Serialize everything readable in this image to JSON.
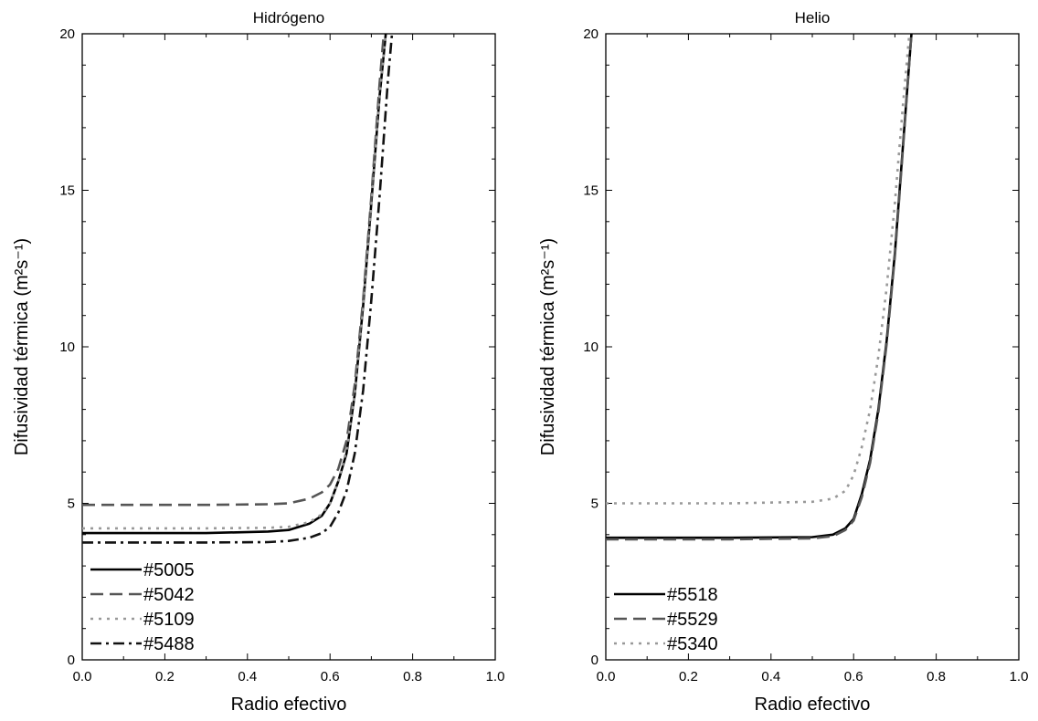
{
  "chart_data": [
    {
      "type": "line",
      "title": "Hidrógeno",
      "xlabel": "Radio efectivo",
      "ylabel": "Difusividad térmica (m²s⁻¹)",
      "xlim": [
        0.0,
        1.0
      ],
      "ylim": [
        0,
        20
      ],
      "xticks": [
        "0.0",
        "0.2",
        "0.4",
        "0.6",
        "0.8",
        "1.0"
      ],
      "yticks": [
        "0",
        "5",
        "10",
        "15",
        "20"
      ],
      "legend_position": "bottom-left",
      "series": [
        {
          "name": "#5005",
          "style": "solid",
          "color": "#000000",
          "x": [
            0.0,
            0.3,
            0.45,
            0.5,
            0.55,
            0.58,
            0.6,
            0.62,
            0.64,
            0.66,
            0.68,
            0.7,
            0.72,
            0.735
          ],
          "y": [
            4.05,
            4.05,
            4.1,
            4.15,
            4.35,
            4.6,
            5.0,
            5.7,
            6.6,
            8.5,
            11.3,
            14.6,
            18.0,
            20.0
          ]
        },
        {
          "name": "#5042",
          "style": "dashed",
          "color": "#555555",
          "x": [
            0.0,
            0.3,
            0.45,
            0.5,
            0.55,
            0.58,
            0.6,
            0.62,
            0.64,
            0.66,
            0.68,
            0.7,
            0.72,
            0.73
          ],
          "y": [
            4.95,
            4.95,
            4.97,
            5.0,
            5.15,
            5.35,
            5.6,
            6.1,
            7.0,
            8.8,
            11.5,
            14.8,
            18.4,
            20.0
          ]
        },
        {
          "name": "#5109",
          "style": "dotted",
          "color": "#999999",
          "x": [
            0.0,
            0.3,
            0.45,
            0.5,
            0.55,
            0.58,
            0.6,
            0.62,
            0.64,
            0.66,
            0.68,
            0.7,
            0.72,
            0.735
          ],
          "y": [
            4.2,
            4.2,
            4.22,
            4.25,
            4.4,
            4.65,
            5.0,
            5.7,
            6.7,
            8.5,
            11.2,
            14.5,
            18.0,
            20.0
          ]
        },
        {
          "name": "#5488",
          "style": "dashdot",
          "color": "#111111",
          "x": [
            0.0,
            0.3,
            0.45,
            0.5,
            0.55,
            0.58,
            0.6,
            0.62,
            0.64,
            0.66,
            0.68,
            0.7,
            0.72,
            0.74,
            0.75
          ],
          "y": [
            3.75,
            3.75,
            3.76,
            3.8,
            3.9,
            4.05,
            4.25,
            4.7,
            5.4,
            6.6,
            8.6,
            11.5,
            14.8,
            18.5,
            20.0
          ]
        }
      ]
    },
    {
      "type": "line",
      "title": "Helio",
      "xlabel": "Radio efectivo",
      "ylabel": "Difusividad térmica (m²s⁻¹)",
      "xlim": [
        0.0,
        1.0
      ],
      "ylim": [
        0,
        20
      ],
      "xticks": [
        "0.0",
        "0.2",
        "0.4",
        "0.6",
        "0.8",
        "1.0"
      ],
      "yticks": [
        "0",
        "5",
        "10",
        "15",
        "20"
      ],
      "legend_position": "bottom-left",
      "series": [
        {
          "name": "#5518",
          "style": "solid",
          "color": "#000000",
          "x": [
            0.0,
            0.3,
            0.5,
            0.55,
            0.58,
            0.6,
            0.62,
            0.64,
            0.66,
            0.68,
            0.7,
            0.72,
            0.74
          ],
          "y": [
            3.9,
            3.9,
            3.92,
            4.0,
            4.2,
            4.5,
            5.3,
            6.4,
            8.0,
            10.2,
            13.0,
            16.5,
            20.0
          ]
        },
        {
          "name": "#5529",
          "style": "dashed",
          "color": "#555555",
          "x": [
            0.0,
            0.3,
            0.5,
            0.55,
            0.58,
            0.6,
            0.62,
            0.64,
            0.66,
            0.68,
            0.7,
            0.72,
            0.74
          ],
          "y": [
            3.85,
            3.85,
            3.88,
            3.95,
            4.15,
            4.45,
            5.2,
            6.3,
            7.9,
            10.1,
            12.9,
            16.4,
            20.0
          ]
        },
        {
          "name": "#5340",
          "style": "dotted",
          "color": "#999999",
          "x": [
            0.0,
            0.3,
            0.5,
            0.55,
            0.58,
            0.6,
            0.62,
            0.64,
            0.66,
            0.68,
            0.7,
            0.72,
            0.735
          ],
          "y": [
            5.0,
            5.0,
            5.05,
            5.15,
            5.4,
            5.9,
            6.8,
            8.0,
            9.7,
            11.9,
            14.6,
            17.8,
            20.0
          ]
        }
      ]
    }
  ]
}
